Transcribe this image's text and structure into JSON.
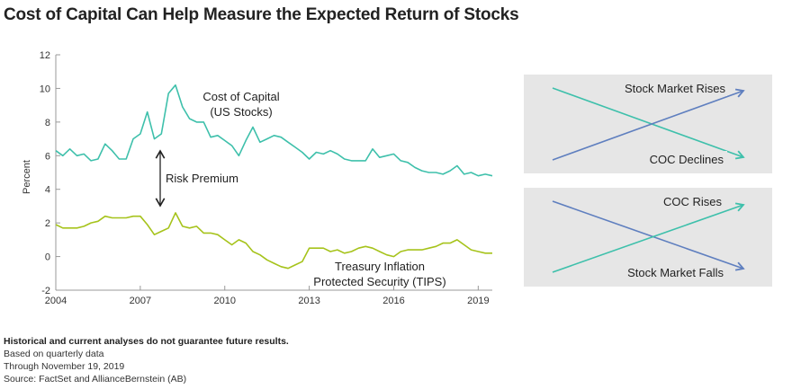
{
  "title": "Cost of Capital Can Help Measure the Expected Return of Stocks",
  "colors": {
    "coc": "#3ec0ab",
    "tips": "#a6c31b",
    "rises_arrow": "#5f7fbf",
    "panel_bg": "#e6e6e6",
    "axis": "#999999"
  },
  "chart_data": {
    "type": "line",
    "ylabel": "Percent",
    "xlabel": "",
    "ylim": [
      -2,
      12
    ],
    "xlim": [
      2004,
      2019.5
    ],
    "yticks": [
      "-2",
      "0",
      "2",
      "4",
      "6",
      "8",
      "10",
      "12"
    ],
    "xticks": [
      "2004",
      "2007",
      "2010",
      "2013",
      "2016",
      "2019"
    ],
    "series": [
      {
        "name": "Cost of Capital (US Stocks)",
        "x": [
          2004.0,
          2004.25,
          2004.5,
          2004.75,
          2005.0,
          2005.25,
          2005.5,
          2005.75,
          2006.0,
          2006.25,
          2006.5,
          2006.75,
          2007.0,
          2007.25,
          2007.5,
          2007.75,
          2008.0,
          2008.25,
          2008.5,
          2008.75,
          2009.0,
          2009.25,
          2009.5,
          2009.75,
          2010.0,
          2010.25,
          2010.5,
          2010.75,
          2011.0,
          2011.25,
          2011.5,
          2011.75,
          2012.0,
          2012.25,
          2012.5,
          2012.75,
          2013.0,
          2013.25,
          2013.5,
          2013.75,
          2014.0,
          2014.25,
          2014.5,
          2014.75,
          2015.0,
          2015.25,
          2015.5,
          2015.75,
          2016.0,
          2016.25,
          2016.5,
          2016.75,
          2017.0,
          2017.25,
          2017.5,
          2017.75,
          2018.0,
          2018.25,
          2018.5,
          2018.75,
          2019.0,
          2019.25,
          2019.5
        ],
        "values": [
          6.3,
          6.0,
          6.4,
          6.0,
          6.1,
          5.7,
          5.8,
          6.7,
          6.3,
          5.8,
          5.8,
          7.0,
          7.3,
          8.6,
          7.0,
          7.3,
          9.7,
          10.2,
          8.9,
          8.2,
          8.0,
          8.0,
          7.1,
          7.2,
          6.9,
          6.6,
          6.0,
          6.9,
          7.7,
          6.8,
          7.0,
          7.2,
          7.1,
          6.8,
          6.5,
          6.2,
          5.8,
          6.2,
          6.1,
          6.3,
          6.1,
          5.8,
          5.7,
          5.7,
          5.7,
          6.4,
          5.9,
          6.0,
          6.1,
          5.7,
          5.6,
          5.3,
          5.1,
          5.0,
          5.0,
          4.9,
          5.1,
          5.4,
          4.9,
          5.0,
          4.8,
          4.9,
          4.8
        ]
      },
      {
        "name": "Treasury Inflation Protected Security (TIPS)",
        "x": [
          2004.0,
          2004.25,
          2004.5,
          2004.75,
          2005.0,
          2005.25,
          2005.5,
          2005.75,
          2006.0,
          2006.25,
          2006.5,
          2006.75,
          2007.0,
          2007.25,
          2007.5,
          2007.75,
          2008.0,
          2008.25,
          2008.5,
          2008.75,
          2009.0,
          2009.25,
          2009.5,
          2009.75,
          2010.0,
          2010.25,
          2010.5,
          2010.75,
          2011.0,
          2011.25,
          2011.5,
          2011.75,
          2012.0,
          2012.25,
          2012.5,
          2012.75,
          2013.0,
          2013.25,
          2013.5,
          2013.75,
          2014.0,
          2014.25,
          2014.5,
          2014.75,
          2015.0,
          2015.25,
          2015.5,
          2015.75,
          2016.0,
          2016.25,
          2016.5,
          2016.75,
          2017.0,
          2017.25,
          2017.5,
          2017.75,
          2018.0,
          2018.25,
          2018.5,
          2018.75,
          2019.0,
          2019.25,
          2019.5
        ],
        "values": [
          1.9,
          1.7,
          1.7,
          1.7,
          1.8,
          2.0,
          2.1,
          2.4,
          2.3,
          2.3,
          2.3,
          2.4,
          2.4,
          1.9,
          1.3,
          1.5,
          1.7,
          2.6,
          1.8,
          1.7,
          1.8,
          1.4,
          1.4,
          1.3,
          1.0,
          0.7,
          1.0,
          0.8,
          0.3,
          0.1,
          -0.2,
          -0.4,
          -0.6,
          -0.7,
          -0.5,
          -0.3,
          0.5,
          0.5,
          0.5,
          0.3,
          0.4,
          0.2,
          0.3,
          0.5,
          0.6,
          0.5,
          0.3,
          0.1,
          0.0,
          0.3,
          0.4,
          0.4,
          0.4,
          0.5,
          0.6,
          0.8,
          0.8,
          1.0,
          0.7,
          0.4,
          0.3,
          0.2,
          0.2
        ]
      }
    ],
    "annotations": {
      "coc_label": [
        "Cost of Capital",
        "(US Stocks)"
      ],
      "tips_label": [
        "Treasury Inflation",
        "Protected Security (TIPS)"
      ],
      "risk_premium": "Risk Premium"
    }
  },
  "panels": [
    {
      "top_label": "Stock Market Rises",
      "bottom_label": "COC Declines",
      "rising_line": "blue",
      "falling_line": "teal"
    },
    {
      "top_label": "COC Rises",
      "bottom_label": "Stock Market Falls",
      "rising_line": "teal",
      "falling_line": "blue"
    }
  ],
  "footnotes": {
    "disclaimer": "Historical and current analyses do not guarantee future results.",
    "lines": [
      "Based on quarterly data",
      "Through November 19, 2019",
      "Source: FactSet and AllianceBernstein (AB)"
    ]
  }
}
